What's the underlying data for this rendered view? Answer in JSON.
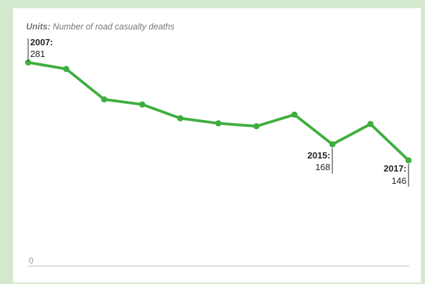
{
  "units": {
    "key": "Units:",
    "text": "Number of road casualty deaths"
  },
  "colors": {
    "background": "#d4e8cf",
    "panel": "#ffffff",
    "line": "#3fae3f",
    "baseline": "#bbbbbb"
  },
  "chart_data": {
    "type": "line",
    "title": "",
    "xlabel": "",
    "ylabel": "",
    "ylim": [
      0,
      290
    ],
    "grid": false,
    "x": [
      2007,
      2008,
      2009,
      2010,
      2011,
      2012,
      2013,
      2014,
      2015,
      2016,
      2017
    ],
    "series": [
      {
        "values": [
          281,
          272,
          230,
          223,
          204,
          197,
          193,
          209,
          168,
          196,
          146
        ]
      }
    ],
    "y_tick_labels": [
      "0"
    ],
    "annotations": [
      {
        "year_label": "2007:",
        "value_label": "281"
      },
      {
        "year_label": "2015:",
        "value_label": "168"
      },
      {
        "year_label": "2017:",
        "value_label": "146"
      }
    ]
  }
}
